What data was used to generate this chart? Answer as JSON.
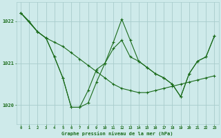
{
  "title": "Graphe pression niveau de la mer (hPa)",
  "bg_color": "#ceeaea",
  "grid_color": "#a8cccc",
  "line_color": "#1a6b1a",
  "marker_color": "#1a6b1a",
  "xlim": [
    -0.5,
    23.5
  ],
  "ylim": [
    1019.55,
    1022.45
  ],
  "yticks": [
    1020,
    1021,
    1022
  ],
  "xticks": [
    0,
    1,
    2,
    3,
    4,
    5,
    6,
    7,
    8,
    9,
    10,
    11,
    12,
    13,
    14,
    15,
    16,
    17,
    18,
    19,
    20,
    21,
    22,
    23
  ],
  "series": [
    {
      "x": [
        0,
        1,
        2,
        3,
        4,
        5,
        6,
        7,
        8,
        9,
        10,
        11,
        12,
        13,
        14,
        15,
        16,
        17,
        18,
        19,
        20,
        21,
        22,
        23
      ],
      "y": [
        1022.2,
        1022.0,
        1021.75,
        1021.6,
        1021.5,
        1021.4,
        1021.25,
        1021.1,
        1020.95,
        1020.8,
        1020.65,
        1020.5,
        1020.4,
        1020.35,
        1020.3,
        1020.3,
        1020.35,
        1020.4,
        1020.45,
        1020.5,
        1020.55,
        1020.6,
        1020.65,
        1020.7
      ]
    },
    {
      "x": [
        0,
        2,
        3,
        4,
        5,
        6,
        7,
        8,
        9,
        10,
        11,
        12,
        13,
        14,
        15,
        16,
        17,
        18,
        19,
        20,
        21,
        22,
        23
      ],
      "y": [
        1022.2,
        1021.75,
        1021.6,
        1021.15,
        1020.65,
        1019.95,
        1019.95,
        1020.05,
        1020.55,
        1021.0,
        1021.35,
        1021.55,
        1021.15,
        1021.05,
        1020.9,
        1020.75,
        1020.65,
        1020.5,
        1020.2,
        1020.75,
        1021.05,
        1021.15,
        1021.65
      ]
    },
    {
      "x": [
        0,
        2,
        3,
        4,
        5,
        6,
        7,
        8,
        9,
        10,
        11,
        12,
        13,
        14,
        15,
        16,
        17,
        18,
        19,
        20,
        21,
        22,
        23
      ],
      "y": [
        1022.2,
        1021.75,
        1021.6,
        1021.15,
        1020.65,
        1019.95,
        1019.95,
        1020.35,
        1020.85,
        1021.0,
        1021.5,
        1022.05,
        1021.55,
        1021.05,
        1020.9,
        1020.75,
        1020.65,
        1020.5,
        1020.2,
        1020.75,
        1021.05,
        1021.15,
        1021.65
      ]
    }
  ]
}
